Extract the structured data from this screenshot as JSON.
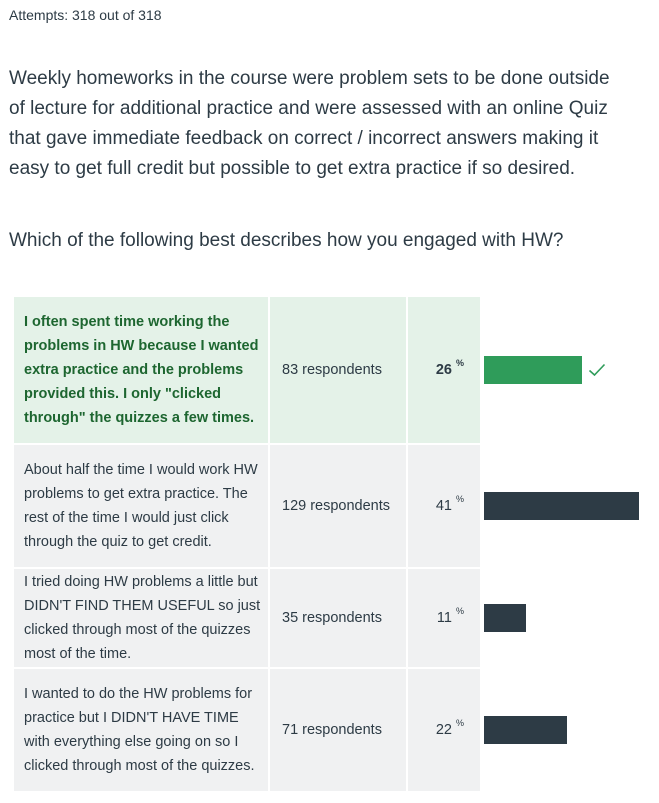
{
  "attempts": "Attempts: 318 out of 318",
  "question_text": "Weekly homeworks in the course were problem sets to be done outside of lecture for additional practice and were assessed with an online Quiz that gave immediate feedback on correct / incorrect answers making it easy to get full credit but possible to get extra practice if so desired.",
  "question_prompt": "Which of the following best describes how you engaged with HW?",
  "colors": {
    "correct_bar": "#2f9c5a",
    "correct_bg": "#e4f2e8",
    "correct_text": "#1d6630",
    "bar": "#2d3b45",
    "cell_bg": "#f0f1f2"
  },
  "answers": [
    {
      "text": "I often spent time working the problems in HW because I wanted extra practice and the problems provided this. I only \"clicked through\" the quizzes a few times.",
      "respondents": "83 respondents",
      "percent": "26",
      "percent_sign": "%",
      "fraction": 0.26,
      "correct": true,
      "icon": "check-icon"
    },
    {
      "text": "About half the time I would work HW problems to get extra practice. The rest of the time I would just click through the quiz to get credit.",
      "respondents": "129 respondents",
      "percent": "41",
      "percent_sign": "%",
      "fraction": 0.41,
      "correct": false
    },
    {
      "text": "I tried doing HW problems a little but DIDN'T FIND THEM USEFUL so just clicked through most of the quizzes most of the time.",
      "respondents": "35 respondents",
      "percent": "11",
      "percent_sign": "%",
      "fraction": 0.11,
      "correct": false
    },
    {
      "text": "I wanted to do the HW problems for practice but I DIDN'T HAVE TIME with everything else going on so I clicked through most of the quizzes.",
      "respondents": "71 respondents",
      "percent": "22",
      "percent_sign": "%",
      "fraction": 0.22,
      "correct": false
    }
  ]
}
